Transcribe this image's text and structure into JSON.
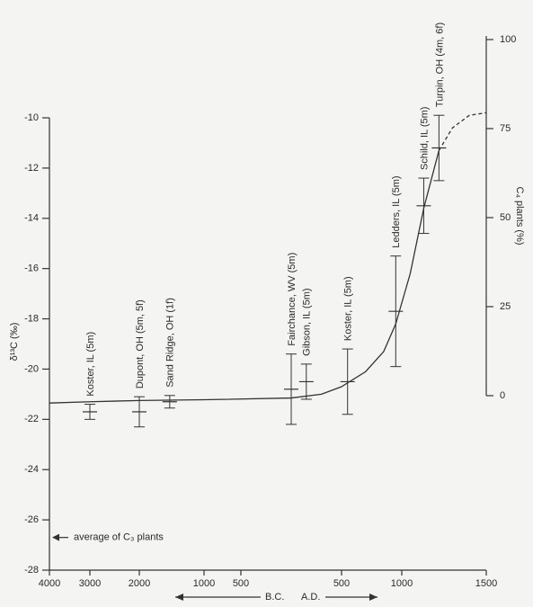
{
  "chart_data": {
    "type": "errorbar",
    "ylabel": "δ¹³C (‰)",
    "y2label": "C₄ plants (%)",
    "xlim": [
      -4000,
      1500
    ],
    "xticks": [
      {
        "value": -4000,
        "label": "4000"
      },
      {
        "value": -3000,
        "label": "3000"
      },
      {
        "value": -2000,
        "label": "2000"
      },
      {
        "value": -1000,
        "label": "1000"
      },
      {
        "value": -500,
        "label": "500"
      },
      500,
      1000,
      1500
    ],
    "ylim": [
      -28,
      -10
    ],
    "yticks": [
      -10,
      -12,
      -14,
      -16,
      -18,
      -20,
      -22,
      -24,
      -26,
      -28
    ],
    "y2lim": [
      0,
      100
    ],
    "y2ticks": [
      0,
      25,
      50,
      75,
      100
    ],
    "era_labels": [
      "B.C.",
      "A.D."
    ],
    "c3_average": {
      "label": "average of C₃ plants",
      "value": -26.7
    },
    "points": {
      "x": [
        -3000,
        -2000,
        -1530,
        0,
        150,
        550,
        950,
        1130,
        1220
      ],
      "values": [
        -21.7,
        -21.7,
        -21.3,
        -20.8,
        -20.5,
        -20.5,
        -17.7,
        -13.5,
        -11.2
      ],
      "errors": [
        0.3,
        0.6,
        0.25,
        1.4,
        0.7,
        1.3,
        2.2,
        1.1,
        1.3
      ],
      "labels": [
        "Koster, IL (5m)",
        "Dupont, OH (5m, 5f)",
        "Sand Ridge, OH (1f)",
        "Fairchance, WV (5m)",
        "Gibson, IL (5m)",
        "Koster, IL (5m)",
        "Ledders, IL (5m)",
        "Schild, IL (5m)",
        "Turpin, OH (4m, 6f)"
      ],
      "color": "#333333"
    },
    "curve": {
      "x": [
        -4000,
        -3000,
        -2000,
        -1000,
        0,
        300,
        500,
        700,
        850,
        950,
        1050,
        1130,
        1220
      ],
      "values": [
        -21.35,
        -21.3,
        -21.25,
        -21.22,
        -21.15,
        -21.0,
        -20.7,
        -20.1,
        -19.3,
        -18.2,
        -16.2,
        -13.6,
        -11.3
      ],
      "color": "#333333"
    },
    "curve_dashed": {
      "x": [
        1220,
        1300,
        1400,
        1500
      ],
      "values": [
        -11.3,
        -10.4,
        -9.9,
        -9.8
      ],
      "color": "#333333"
    }
  }
}
